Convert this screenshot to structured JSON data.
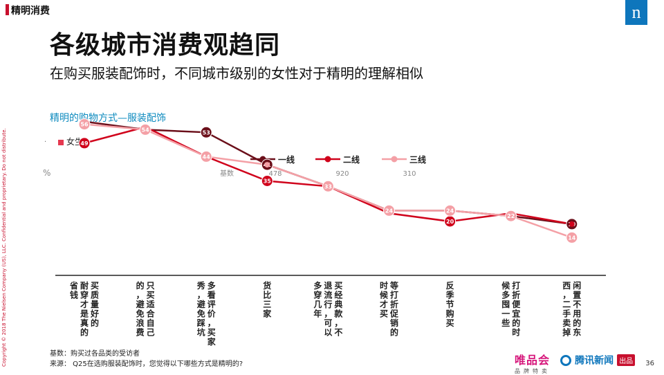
{
  "section_tag": "精明消费",
  "logo_letter": "n",
  "title": "各级城市消费观趋同",
  "subtitle": "在购买服装配饰时，不同城市级别的女性对于精明的理解相似",
  "chart_heading": "精明的购物方式—服装配饰",
  "dot_marker": ".",
  "gender_label": "女生",
  "copyright": "Copyright © 2018 The Nielsen Company (US), LLC. Confidential and proprietary. Do not distribute.",
  "footnote": {
    "base": "基数：购买过各品类的受访者",
    "source": "来源：  Q25在选购服装配饰时，您觉得以下哪些方式是精明的?"
  },
  "brands": {
    "vip_main": "唯品会",
    "vip_sub": "品牌特卖",
    "qq_news": "腾讯新闻",
    "qq_chu": "出品"
  },
  "page_number": "36",
  "colors": {
    "accent_red": "#c8102e",
    "heading_blue": "#0e8bbf",
    "tier1": "#6b0f1a",
    "tier2": "#d0021b",
    "tier3": "#f4a0a6"
  },
  "chart_data": {
    "type": "line",
    "unit_label": "%",
    "base_label": "基数",
    "categories": [
      "买质量好的耐穿才是真的省钱",
      "只买适合自己的，避免浪费",
      "多看评价，买家秀，避免踩坑",
      "货比三家",
      "买经典款，不退流行，可以多穿几年",
      "等打折促销的时候才买",
      "反季节购买",
      "打折便宜的时候多囤一些",
      "闲置不用的东西，二手卖掉"
    ],
    "category_lines": [
      [
        "买质量好的",
        "耐穿才是真的",
        "省钱"
      ],
      [
        "只买适合自己",
        "的，避免浪费"
      ],
      [
        "多看评价，买家",
        "秀，避免踩坑"
      ],
      [
        "货比三家"
      ],
      [
        "买经典款，不",
        "退流行，可以",
        "多穿几年"
      ],
      [
        "等打折促销的",
        "时候才买"
      ],
      [
        "反季节购买"
      ],
      [
        "打折便宜的时",
        "候多囤一些"
      ],
      [
        "闲置不用的东",
        "西，二手卖掉"
      ]
    ],
    "series": [
      {
        "name": "一线",
        "base": "478",
        "values": [
          57,
          54,
          53,
          41,
          33,
          24,
          24,
          22,
          19
        ]
      },
      {
        "name": "二线",
        "base": "920",
        "values": [
          49,
          55,
          44,
          35,
          33,
          23,
          20,
          23,
          19
        ]
      },
      {
        "name": "三线",
        "base": "310",
        "values": [
          56,
          54,
          44,
          41,
          33,
          24,
          24,
          22,
          14
        ]
      }
    ],
    "data_labels": {
      "一线": [
        null,
        null,
        "53",
        "41",
        null,
        null,
        null,
        null,
        "19"
      ],
      "二线": [
        "49",
        null,
        null,
        "35",
        null,
        null,
        "20",
        null,
        null
      ],
      "三线": [
        "56",
        "54",
        "44",
        null,
        "33",
        "24",
        "24",
        "22",
        "14"
      ]
    },
    "ylim": [
      0,
      70
    ],
    "legend_position": "top-center"
  }
}
